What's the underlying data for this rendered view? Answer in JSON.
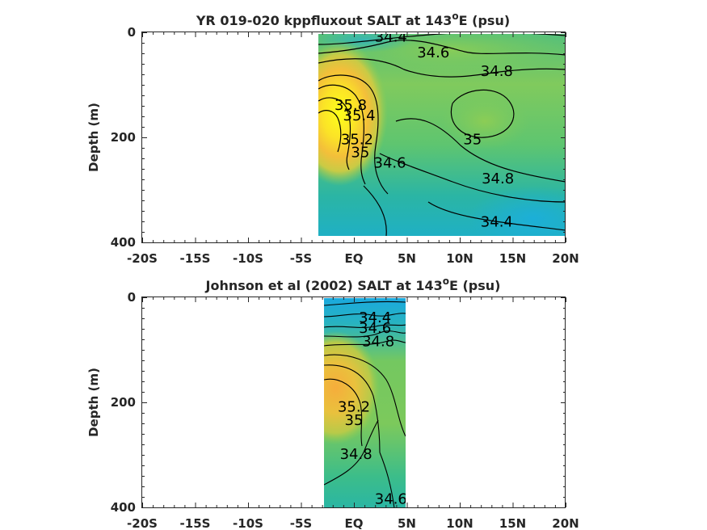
{
  "chart_data": [
    {
      "type": "heatmap",
      "title": "YR 019-020 kppfluxout SALT at 143",
      "title_sup": "o",
      "title_suffix": "E (psu)",
      "xlabel": "",
      "ylabel": "Depth (m)",
      "xlim": [
        -20,
        20
      ],
      "ylim": [
        0,
        400
      ],
      "y_reversed": true,
      "xticks": [
        -20,
        -15,
        -10,
        -5,
        0,
        5,
        10,
        15,
        20
      ],
      "xticklabels": [
        "-20S",
        "-15S",
        "-10S",
        "-5S",
        "EQ",
        "5N",
        "10N",
        "15N",
        "20N"
      ],
      "yticks": [
        0,
        200,
        400
      ],
      "yticklabels": [
        "0",
        "200",
        "400"
      ],
      "data_extent": {
        "lon": [
          -3.3,
          20
        ],
        "depth": [
          0,
          385
        ]
      },
      "colors": {
        "fresh": "#1aaee0",
        "mid": "#8ccd55",
        "salty": "#fffe1a"
      },
      "salinity_field_samples": [
        {
          "lon": -2,
          "depth": 30,
          "salt": 34.4
        },
        {
          "lon": 3,
          "depth": 10,
          "salt": 34.3
        },
        {
          "lon": 10,
          "depth": 20,
          "salt": 34.6
        },
        {
          "lon": 17,
          "depth": 10,
          "salt": 34.7
        },
        {
          "lon": -2.5,
          "depth": 100,
          "salt": 35.8
        },
        {
          "lon": -2,
          "depth": 150,
          "salt": 35.9
        },
        {
          "lon": 0,
          "depth": 180,
          "salt": 35.5
        },
        {
          "lon": 1.5,
          "depth": 140,
          "salt": 35.1
        },
        {
          "lon": 5,
          "depth": 180,
          "salt": 34.9
        },
        {
          "lon": 13,
          "depth": 160,
          "salt": 35.05
        },
        {
          "lon": 18,
          "depth": 120,
          "salt": 34.85
        },
        {
          "lon": 5,
          "depth": 300,
          "salt": 34.65
        },
        {
          "lon": 12,
          "depth": 330,
          "salt": 34.5
        },
        {
          "lon": 18,
          "depth": 370,
          "salt": 34.3
        },
        {
          "lon": -2,
          "depth": 350,
          "salt": 34.75
        }
      ],
      "contour_labels": [
        {
          "text": "34.4",
          "lon": 3.5,
          "depth": 10
        },
        {
          "text": "34.6",
          "lon": 7.5,
          "depth": 40
        },
        {
          "text": "34.8",
          "lon": 13.5,
          "depth": 75
        },
        {
          "text": "35.8",
          "lon": -0.3,
          "depth": 140
        },
        {
          "text": "35.4",
          "lon": 0.5,
          "depth": 160
        },
        {
          "text": "35.2",
          "lon": 0.3,
          "depth": 205
        },
        {
          "text": "35",
          "lon": 0.6,
          "depth": 230
        },
        {
          "text": "34.6",
          "lon": 3.4,
          "depth": 250
        },
        {
          "text": "35",
          "lon": 11.2,
          "depth": 205
        },
        {
          "text": "34.8",
          "lon": 13.6,
          "depth": 280
        },
        {
          "text": "34.4",
          "lon": 13.5,
          "depth": 362
        }
      ]
    },
    {
      "type": "heatmap",
      "title": "Johnson et al (2002) SALT at 143",
      "title_sup": "o",
      "title_suffix": "E (psu)",
      "xlabel": "",
      "ylabel": "Depth (m)",
      "xlim": [
        -20,
        20
      ],
      "ylim": [
        0,
        400
      ],
      "y_reversed": true,
      "xticks": [
        -20,
        -15,
        -10,
        -5,
        0,
        5,
        10,
        15,
        20
      ],
      "xticklabels": [
        "-20S",
        "-15S",
        "-10S",
        "-5S",
        "EQ",
        "5N",
        "10N",
        "15N",
        "20N"
      ],
      "yticks": [
        0,
        200,
        400
      ],
      "yticklabels": [
        "0",
        "200",
        "400"
      ],
      "data_extent": {
        "lon": [
          -2.7,
          5
        ],
        "depth": [
          5,
          400
        ]
      },
      "colors": {
        "fresh": "#1aaee0",
        "mid": "#8ccd55",
        "salty": "#f2b436"
      },
      "salinity_field_samples": [
        {
          "lon": 0,
          "depth": 20,
          "salt": 34.3
        },
        {
          "lon": 2,
          "depth": 60,
          "salt": 34.6
        },
        {
          "lon": -1.5,
          "depth": 150,
          "salt": 35.35
        },
        {
          "lon": -2,
          "depth": 200,
          "salt": 35.4
        },
        {
          "lon": 2,
          "depth": 200,
          "salt": 35.0
        },
        {
          "lon": 4,
          "depth": 150,
          "salt": 34.8
        },
        {
          "lon": 0,
          "depth": 320,
          "salt": 34.85
        },
        {
          "lon": 3,
          "depth": 380,
          "salt": 34.6
        }
      ],
      "contour_labels": [
        {
          "text": "34.4",
          "lon": 2,
          "depth": 40
        },
        {
          "text": "34.6",
          "lon": 2,
          "depth": 60
        },
        {
          "text": "34.8",
          "lon": 2.3,
          "depth": 85
        },
        {
          "text": "35.2",
          "lon": 0,
          "depth": 210
        },
        {
          "text": "35",
          "lon": 0,
          "depth": 235
        },
        {
          "text": "34.8",
          "lon": 0.2,
          "depth": 300
        },
        {
          "text": "34.6",
          "lon": 3.5,
          "depth": 385
        }
      ]
    }
  ]
}
